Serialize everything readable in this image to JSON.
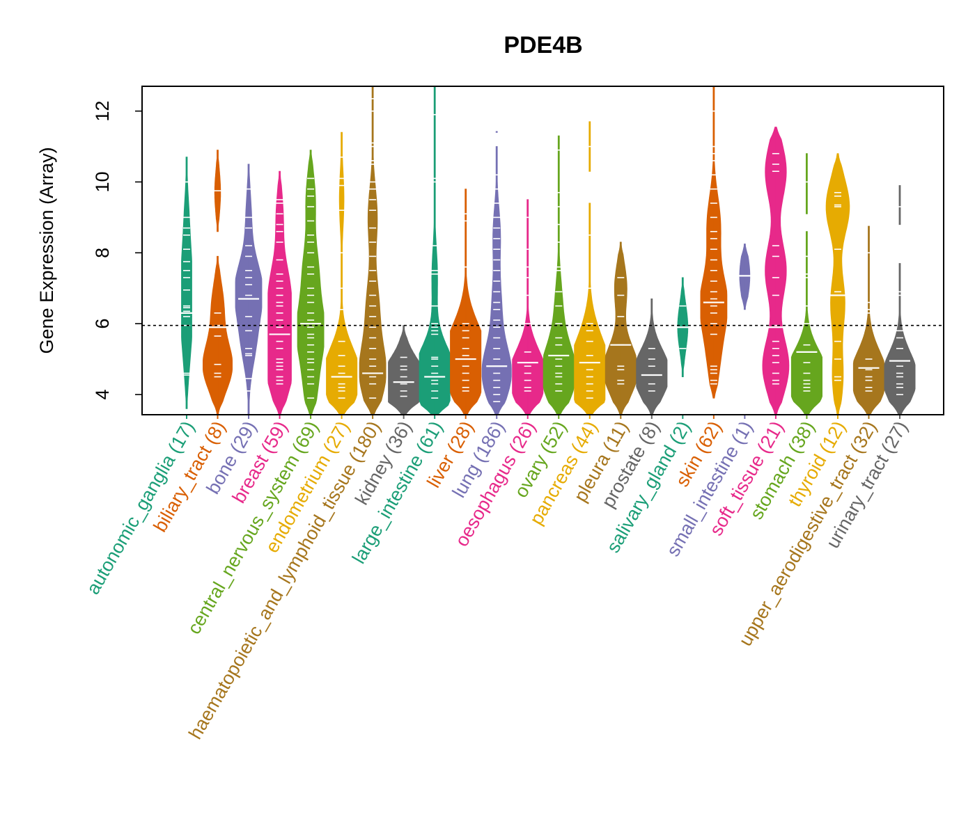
{
  "chart_data": {
    "type": "violin",
    "title": "PDE4B",
    "xlabel": "",
    "ylabel": "Gene Expression (Array)",
    "ylim": [
      3.43,
      12.7
    ],
    "yticks": [
      4,
      6,
      8,
      10,
      12
    ],
    "grid": false,
    "legend": "none",
    "reference_line": {
      "value": 5.95,
      "style": "dotted"
    },
    "categories": [
      {
        "name": "autonomic_ganglia",
        "n": 17,
        "label": "autonomic_ganglia (17)",
        "color": "#1B9E77",
        "min": 3.6,
        "max": 10.7,
        "median": 6.3,
        "segments": [
          [
            3.6,
            10.7,
            0.35
          ]
        ],
        "modes": [
          [
            6.3,
            1.0
          ],
          [
            7.6,
            0.75
          ],
          [
            5.0,
            0.45
          ],
          [
            9.0,
            0.4
          ]
        ],
        "points": [
          4.55,
          4.6,
          5.95,
          6.2,
          6.3,
          6.35,
          6.45,
          6.5,
          6.95,
          7.3,
          7.5,
          7.75,
          8.1,
          8.5,
          8.7,
          9.0,
          10.0
        ]
      },
      {
        "name": "biliary_tract",
        "n": 8,
        "label": "biliary_tract (8)",
        "color": "#D95F02",
        "min": 3.43,
        "max": 10.9,
        "median": 5.9,
        "segments": [
          [
            3.43,
            7.9,
            1.0
          ],
          [
            8.6,
            10.9,
            0.5
          ]
        ],
        "modes": [
          [
            4.8,
            1.0
          ],
          [
            6.5,
            0.4
          ],
          [
            9.7,
            0.4
          ]
        ],
        "points": [
          4.5,
          4.6,
          4.85,
          5.65,
          5.95,
          6.3,
          9.75
        ]
      },
      {
        "name": "bone",
        "n": 29,
        "label": "bone (29)",
        "color": "#7570B3",
        "min": 3.43,
        "max": 10.5,
        "median": 6.7,
        "segments": [
          [
            3.43,
            10.5,
            0.9
          ]
        ],
        "modes": [
          [
            7.0,
            1.0
          ],
          [
            5.5,
            0.5
          ],
          [
            9.0,
            0.2
          ]
        ],
        "points": [
          4.1,
          4.45,
          5.1,
          5.15,
          5.3,
          5.8,
          6.2,
          6.7,
          6.8,
          7.1,
          7.3,
          7.5,
          7.9,
          8.2,
          8.7,
          9.0,
          9.8
        ]
      },
      {
        "name": "breast",
        "n": 59,
        "label": "breast (59)",
        "color": "#E7298A",
        "min": 3.43,
        "max": 10.3,
        "median": 5.7,
        "segments": [
          [
            3.43,
            10.3,
            0.8
          ]
        ],
        "modes": [
          [
            5.5,
            1.0
          ],
          [
            7.0,
            0.8
          ],
          [
            4.5,
            0.7
          ],
          [
            9.0,
            0.3
          ]
        ],
        "points": [
          4.3,
          4.4,
          4.5,
          4.7,
          4.8,
          4.9,
          5.0,
          5.3,
          5.5,
          5.7,
          5.9,
          6.1,
          6.3,
          6.5,
          6.6,
          6.8,
          7.0,
          7.2,
          7.4,
          7.8,
          8.3,
          8.6,
          8.8,
          9.1,
          9.4,
          9.5
        ]
      },
      {
        "name": "central_nervous_system",
        "n": 69,
        "label": "central_nervous_system (69)",
        "color": "#66A61E",
        "min": 3.43,
        "max": 10.9,
        "median": 6.0,
        "segments": [
          [
            3.43,
            10.9,
            0.9
          ]
        ],
        "modes": [
          [
            5.8,
            1.0
          ],
          [
            7.5,
            0.55
          ],
          [
            4.2,
            0.45
          ],
          [
            9.5,
            0.35
          ]
        ],
        "points": [
          3.9,
          4.3,
          4.5,
          4.7,
          4.9,
          5.0,
          5.2,
          5.4,
          5.6,
          5.7,
          5.9,
          6.0,
          6.1,
          6.3,
          6.6,
          6.8,
          7.0,
          7.4,
          7.6,
          8.0,
          8.3,
          8.5,
          8.9,
          9.3,
          9.6,
          9.8,
          10.1
        ]
      },
      {
        "name": "endometrium",
        "n": 27,
        "label": "endometrium (27)",
        "color": "#E6AB02",
        "min": 3.43,
        "max": 11.4,
        "median": 4.5,
        "segments": [
          [
            3.43,
            11.4,
            1.3
          ]
        ],
        "modes": [
          [
            4.5,
            1.0
          ],
          [
            9.5,
            0.12
          ]
        ],
        "points": [
          3.9,
          4.1,
          4.2,
          4.3,
          4.5,
          4.6,
          4.8,
          5.1,
          5.5,
          6.4,
          7.0,
          8.0,
          9.2,
          9.9,
          10.1,
          10.7
        ]
      },
      {
        "name": "haematopoietic_and_lymphoid_tissue",
        "n": 180,
        "label": "haematopoietic_and_lymphoid_tissue (180)",
        "color": "#A6761D",
        "min": 3.43,
        "max": 12.7,
        "median": 4.6,
        "segments": [
          [
            3.43,
            12.7,
            0.9
          ]
        ],
        "modes": [
          [
            4.6,
            1.0
          ],
          [
            6.5,
            0.45
          ],
          [
            9.0,
            0.35
          ]
        ],
        "points": [
          3.9,
          4.3,
          4.5,
          4.6,
          4.8,
          5.0,
          5.3,
          5.6,
          5.9,
          6.2,
          6.5,
          6.8,
          7.2,
          7.5,
          7.9,
          8.3,
          8.7,
          9.2,
          9.5,
          9.8,
          10.0,
          10.5,
          10.6,
          11.0,
          11.1,
          12.0,
          12.35
        ]
      },
      {
        "name": "kidney",
        "n": 36,
        "label": "kidney (36)",
        "color": "#666666",
        "min": 3.43,
        "max": 5.95,
        "median": 4.35,
        "segments": [
          [
            3.43,
            5.95,
            1.6
          ]
        ],
        "modes": [
          [
            4.35,
            1.0
          ]
        ],
        "points": [
          3.95,
          4.1,
          4.3,
          4.35,
          4.5,
          4.7,
          4.8,
          5.05
        ]
      },
      {
        "name": "large_intestine",
        "n": 61,
        "label": "large_intestine (61)",
        "color": "#1B9E77",
        "min": 3.43,
        "max": 12.7,
        "median": 4.5,
        "segments": [
          [
            3.43,
            12.7,
            1.6
          ]
        ],
        "modes": [
          [
            4.4,
            1.0
          ],
          [
            7.3,
            0.12
          ]
        ],
        "points": [
          3.9,
          4.1,
          4.3,
          4.4,
          4.6,
          4.8,
          5.0,
          5.05,
          5.7,
          5.8,
          5.9,
          6.0,
          6.5,
          7.4,
          7.5,
          8.2,
          10.0,
          10.1,
          11.9
        ]
      },
      {
        "name": "liver",
        "n": 28,
        "label": "liver (28)",
        "color": "#D95F02",
        "min": 3.43,
        "max": 9.8,
        "median": 5.0,
        "segments": [
          [
            3.43,
            9.8,
            1.3
          ]
        ],
        "modes": [
          [
            4.6,
            1.0
          ],
          [
            5.6,
            0.55
          ]
        ],
        "points": [
          4.1,
          4.2,
          4.4,
          4.6,
          4.8,
          5.0,
          5.1,
          5.3,
          5.6,
          5.8,
          6.0,
          7.6,
          8.9,
          9.1
        ]
      },
      {
        "name": "lung",
        "n": 186,
        "label": "lung (186)",
        "color": "#7570B3",
        "min": 3.43,
        "max": 11.45,
        "median": 4.8,
        "segments": [
          [
            3.43,
            11.0,
            1.0
          ],
          [
            11.4,
            11.45,
            0.2
          ]
        ],
        "modes": [
          [
            4.6,
            1.0
          ],
          [
            6.5,
            0.3
          ],
          [
            8.5,
            0.25
          ]
        ],
        "points": [
          3.8,
          4.0,
          4.2,
          4.4,
          4.6,
          4.8,
          5.0,
          5.3,
          5.6,
          5.9,
          6.1,
          6.4,
          6.6,
          6.9,
          7.2,
          7.5,
          7.8,
          8.1,
          8.4,
          8.7,
          9.0,
          9.4,
          9.8,
          10.2,
          11.45
        ]
      },
      {
        "name": "oesophagus",
        "n": 26,
        "label": "oesophagus (26)",
        "color": "#E7298A",
        "min": 3.43,
        "max": 9.5,
        "median": 4.9,
        "segments": [
          [
            3.43,
            9.5,
            1.3
          ]
        ],
        "modes": [
          [
            4.5,
            1.0
          ]
        ],
        "points": [
          4.1,
          4.2,
          4.4,
          4.6,
          4.8,
          4.9,
          5.2,
          6.0,
          6.8,
          7.3,
          7.6,
          8.1,
          9.0
        ]
      },
      {
        "name": "ovary",
        "n": 52,
        "label": "ovary (52)",
        "color": "#66A61E",
        "min": 3.43,
        "max": 11.3,
        "median": 5.1,
        "segments": [
          [
            3.43,
            11.3,
            1.2
          ]
        ],
        "modes": [
          [
            4.6,
            1.0
          ],
          [
            6.5,
            0.2
          ]
        ],
        "points": [
          4.1,
          4.3,
          4.5,
          4.6,
          4.8,
          5.0,
          5.1,
          5.4,
          5.6,
          6.0,
          6.5,
          6.9,
          7.5,
          7.6,
          8.3,
          8.8,
          9.3,
          9.7,
          10.9
        ]
      },
      {
        "name": "pancreas",
        "n": 44,
        "label": "pancreas (44)",
        "color": "#E6AB02",
        "min": 3.43,
        "max": 11.7,
        "median": 4.9,
        "segments": [
          [
            3.43,
            9.4,
            1.4
          ],
          [
            10.3,
            11.7,
            0.2
          ]
        ],
        "modes": [
          [
            4.4,
            1.0
          ],
          [
            5.5,
            0.35
          ]
        ],
        "points": [
          3.9,
          4.1,
          4.3,
          4.5,
          4.7,
          4.9,
          5.1,
          5.5,
          5.8,
          6.0,
          7.0,
          8.5,
          11.0
        ]
      },
      {
        "name": "pleura",
        "n": 11,
        "label": "pleura (11)",
        "color": "#A6761D",
        "min": 3.43,
        "max": 8.3,
        "median": 5.4,
        "segments": [
          [
            3.43,
            8.3,
            1.2
          ]
        ],
        "modes": [
          [
            4.7,
            1.0
          ],
          [
            7.0,
            0.35
          ]
        ],
        "points": [
          4.3,
          4.4,
          4.7,
          4.8,
          5.4,
          6.2,
          6.8,
          7.3
        ]
      },
      {
        "name": "prostate",
        "n": 8,
        "label": "prostate (8)",
        "color": "#666666",
        "min": 3.43,
        "max": 6.7,
        "median": 4.55,
        "segments": [
          [
            3.43,
            6.7,
            1.25
          ]
        ],
        "modes": [
          [
            4.6,
            1.0
          ]
        ],
        "points": [
          4.1,
          4.3,
          4.55,
          4.8,
          5.0,
          5.3
        ]
      },
      {
        "name": "salivary_gland",
        "n": 2,
        "label": "salivary_gland (2)",
        "color": "#1B9E77",
        "min": 4.5,
        "max": 7.3,
        "median": 5.9,
        "segments": [
          [
            4.5,
            7.3,
            0.35
          ]
        ],
        "modes": [
          [
            5.9,
            1.0
          ]
        ],
        "points": [
          5.3,
          6.5
        ]
      },
      {
        "name": "skin",
        "n": 62,
        "label": "skin (62)",
        "color": "#D95F02",
        "min": 3.9,
        "max": 12.7,
        "median": 6.6,
        "segments": [
          [
            3.9,
            12.7,
            0.9
          ]
        ],
        "modes": [
          [
            6.6,
            1.0
          ],
          [
            8.8,
            0.5
          ],
          [
            5.0,
            0.4
          ]
        ],
        "points": [
          4.3,
          4.4,
          4.6,
          4.7,
          4.8,
          5.7,
          6.0,
          6.3,
          6.5,
          6.7,
          6.9,
          7.2,
          7.5,
          7.8,
          8.1,
          8.4,
          8.6,
          9.0,
          9.4,
          9.8,
          10.2,
          10.6,
          10.8,
          11.0,
          12.0
        ]
      },
      {
        "name": "small_intestine",
        "n": 1,
        "label": "small_intestine (1)",
        "color": "#7570B3",
        "min": 6.4,
        "max": 8.25,
        "median": 7.35,
        "segments": [
          [
            6.4,
            8.25,
            0.35
          ]
        ],
        "modes": [
          [
            7.35,
            1.0
          ]
        ],
        "points": [
          7.35
        ]
      },
      {
        "name": "soft_tissue",
        "n": 21,
        "label": "soft_tissue (21)",
        "color": "#E7298A",
        "min": 3.43,
        "max": 11.55,
        "median": 5.9,
        "segments": [
          [
            3.43,
            11.55,
            0.9
          ]
        ],
        "modes": [
          [
            4.8,
            1.0
          ],
          [
            7.5,
            0.8
          ],
          [
            10.3,
            0.8
          ]
        ],
        "points": [
          4.3,
          4.4,
          4.6,
          4.9,
          5.1,
          5.3,
          5.5,
          5.95,
          6.8,
          7.3,
          7.9,
          8.2,
          10.3,
          10.5,
          10.8
        ]
      },
      {
        "name": "stomach",
        "n": 38,
        "label": "stomach (38)",
        "color": "#66A61E",
        "min": 3.43,
        "max": 10.8,
        "median": 5.2,
        "segments": [
          [
            3.43,
            8.6,
            1.45
          ],
          [
            9.1,
            10.8,
            0.25
          ]
        ],
        "modes": [
          [
            4.5,
            1.0
          ]
        ],
        "points": [
          4.1,
          4.2,
          4.3,
          4.4,
          4.6,
          4.9,
          5.2,
          5.4,
          6.0,
          6.5,
          7.3,
          7.4,
          7.9,
          10.0
        ]
      },
      {
        "name": "thyroid",
        "n": 12,
        "label": "thyroid (12)",
        "color": "#E6AB02",
        "min": 3.43,
        "max": 10.8,
        "median": 6.8,
        "segments": [
          [
            3.43,
            10.8,
            0.8
          ]
        ],
        "modes": [
          [
            9.3,
            1.0
          ],
          [
            6.6,
            0.6
          ],
          [
            4.5,
            0.45
          ]
        ],
        "points": [
          4.4,
          4.5,
          5.0,
          5.5,
          6.8,
          6.9,
          8.1,
          9.3,
          9.35,
          9.6,
          9.7
        ]
      },
      {
        "name": "upper_aerodigestive_tract",
        "n": 32,
        "label": "upper_aerodigestive_tract (32)",
        "color": "#A6761D",
        "min": 3.43,
        "max": 8.75,
        "median": 4.75,
        "segments": [
          [
            3.43,
            8.75,
            1.25
          ]
        ],
        "modes": [
          [
            4.5,
            1.0
          ]
        ],
        "points": [
          4.1,
          4.2,
          4.4,
          4.5,
          4.7,
          4.75,
          5.0,
          6.3,
          6.4,
          6.6,
          8.0
        ]
      },
      {
        "name": "urinary_tract",
        "n": 27,
        "label": "urinary_tract (27)",
        "color": "#666666",
        "min": 3.43,
        "max": 9.9,
        "median": 4.95,
        "segments": [
          [
            3.43,
            7.7,
            1.2
          ],
          [
            8.8,
            9.9,
            0.15
          ]
        ],
        "modes": [
          [
            4.5,
            1.0
          ]
        ],
        "points": [
          4.0,
          4.2,
          4.3,
          4.5,
          4.6,
          4.8,
          4.95,
          5.3,
          5.6,
          5.8,
          6.8,
          6.9,
          9.3
        ]
      }
    ]
  }
}
